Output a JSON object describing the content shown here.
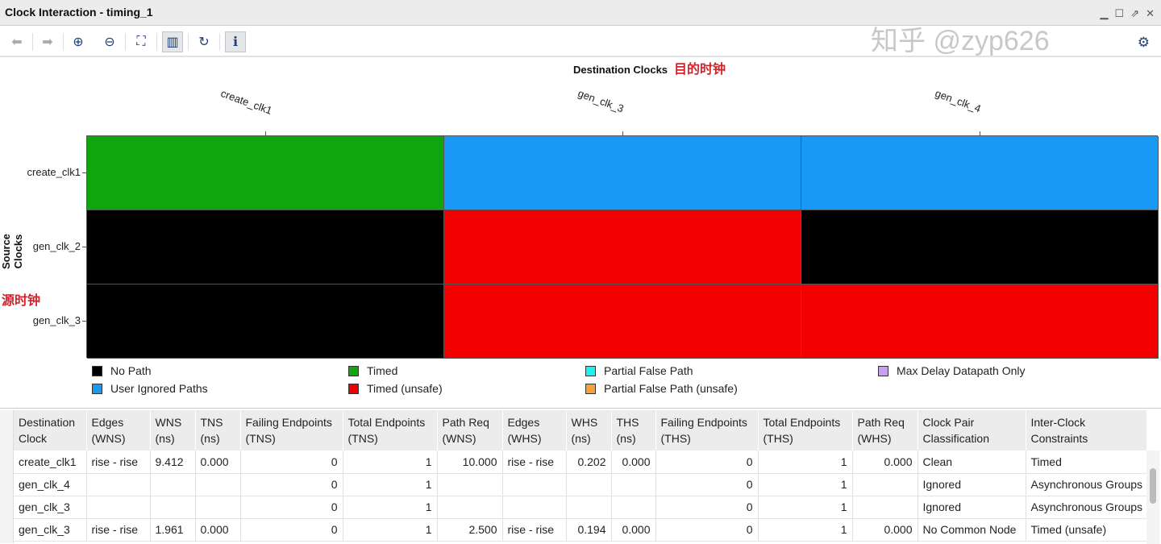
{
  "window": {
    "title": "Clock Interaction - timing_1"
  },
  "toolbar": {
    "buttons": [
      {
        "name": "back-icon",
        "glyph": "⬅"
      },
      {
        "name": "forward-icon",
        "glyph": "➡"
      },
      {
        "name": "zoom-in-icon",
        "glyph": "⊕"
      },
      {
        "name": "zoom-out-icon",
        "glyph": "⊖"
      },
      {
        "name": "fit-icon",
        "glyph": "⛶"
      },
      {
        "name": "chart-icon",
        "glyph": "▥"
      },
      {
        "name": "refresh-icon",
        "glyph": "↻"
      },
      {
        "name": "info-icon",
        "glyph": "ℹ"
      }
    ],
    "settings_icon": "gear-icon"
  },
  "chart": {
    "x_title": "Destination Clocks",
    "x_note": "目的时钟",
    "y_title": "Source Clocks",
    "y_note": "源时钟",
    "columns": [
      "create_clk1",
      "gen_clk_3",
      "gen_clk_4"
    ],
    "rows": [
      "create_clk1",
      "gen_clk_2",
      "gen_clk_3"
    ],
    "cells": [
      [
        "Timed",
        "User Ignored Paths",
        "User Ignored Paths"
      ],
      [
        "No Path",
        "Timed (unsafe)",
        "No Path"
      ],
      [
        "No Path",
        "Timed (unsafe)",
        "Timed (unsafe)"
      ]
    ],
    "colors": {
      "No Path": "#000000",
      "Timed": "#0fa50f",
      "Partial False Path": "#1ff0f0",
      "Max Delay Datapath Only": "#c8a0f0",
      "User Ignored Paths": "#1799f5",
      "Timed (unsafe)": "#f20000",
      "Partial False Path (unsafe)": "#f5a433"
    },
    "legend": [
      [
        "No Path",
        "User Ignored Paths"
      ],
      [
        "Timed",
        "Timed (unsafe)"
      ],
      [
        "Partial False Path",
        "Partial False Path (unsafe)"
      ],
      [
        "Max Delay Datapath Only"
      ]
    ]
  },
  "table": {
    "headers": [
      [
        "Destination",
        "Clock"
      ],
      [
        "Edges",
        "(WNS)"
      ],
      [
        "WNS",
        "(ns)"
      ],
      [
        "TNS",
        "(ns)"
      ],
      [
        "Failing Endpoints",
        "(TNS)"
      ],
      [
        "Total Endpoints",
        "(TNS)"
      ],
      [
        "Path Req",
        "(WNS)"
      ],
      [
        "Edges",
        "(WHS)"
      ],
      [
        "WHS",
        "(ns)"
      ],
      [
        "THS",
        "(ns)"
      ],
      [
        "Failing Endpoints",
        "(THS)"
      ],
      [
        "Total Endpoints",
        "(THS)"
      ],
      [
        "Path Req",
        "(WHS)"
      ],
      [
        "Clock Pair",
        "Classification"
      ],
      [
        "Inter-Clock Constraints",
        ""
      ]
    ],
    "rows": [
      [
        "create_clk1",
        "rise - rise",
        "9.412",
        "0.000",
        "0",
        "1",
        "10.000",
        "rise - rise",
        "0.202",
        "0.000",
        "0",
        "1",
        "0.000",
        "Clean",
        "Timed"
      ],
      [
        "gen_clk_4",
        "",
        "",
        "",
        "0",
        "1",
        "",
        "",
        "",
        "",
        "0",
        "1",
        "",
        "Ignored",
        "Asynchronous Groups"
      ],
      [
        "gen_clk_3",
        "",
        "",
        "",
        "0",
        "1",
        "",
        "",
        "",
        "",
        "0",
        "1",
        "",
        "Ignored",
        "Asynchronous Groups"
      ],
      [
        "gen_clk_3",
        "rise - rise",
        "1.961",
        "0.000",
        "0",
        "1",
        "2.500",
        "rise - rise",
        "0.194",
        "0.000",
        "0",
        "1",
        "0.000",
        "No Common Node",
        "Timed (unsafe)"
      ]
    ]
  },
  "watermark": "知乎 @zyp626"
}
